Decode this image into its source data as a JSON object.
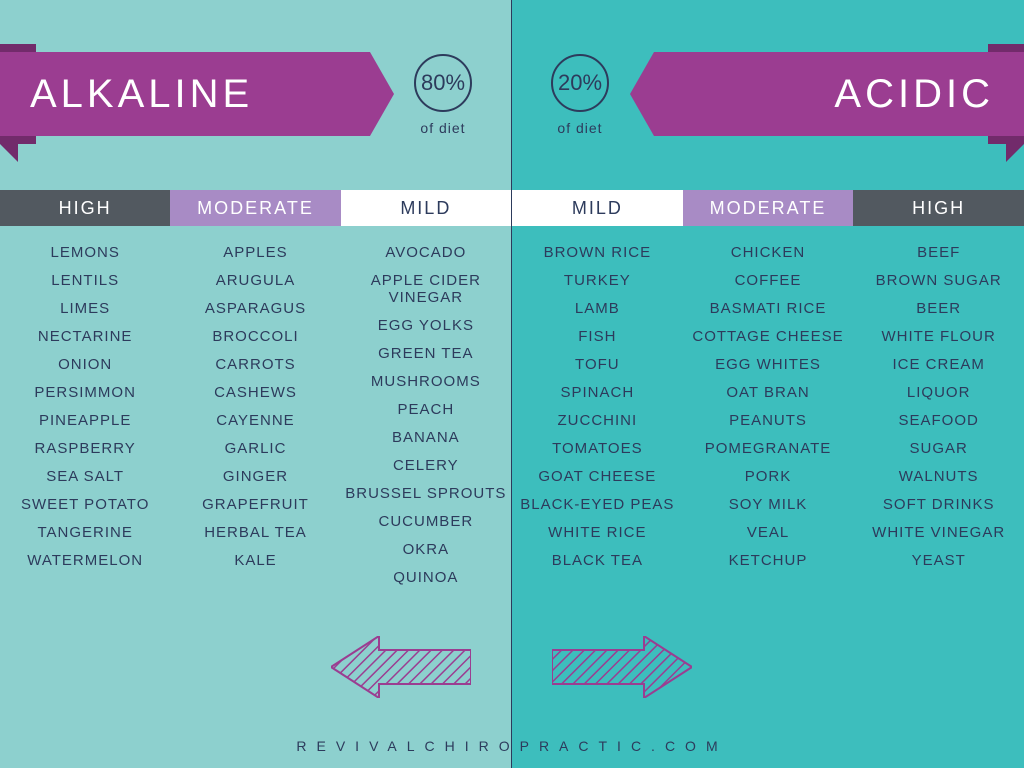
{
  "colors": {
    "left_bg": "#8DD0CE",
    "right_bg": "#3DBEBD",
    "banner": "#9B3D91",
    "banner_shadow": "#722B6B",
    "text_dark": "#2D3B5C",
    "cat_high": "#525960",
    "cat_moderate": "#A88BC5",
    "cat_mild_bg": "#FFFFFF"
  },
  "left": {
    "title": "ALKALINE",
    "pct": "80%",
    "pct_sub": "of diet",
    "cats": {
      "high": "HIGH",
      "moderate": "MODERATE",
      "mild": "MILD"
    },
    "high": [
      "LEMONS",
      "LENTILS",
      "LIMES",
      "NECTARINE",
      "ONION",
      "PERSIMMON",
      "PINEAPPLE",
      "RASPBERRY",
      "SEA SALT",
      "SWEET POTATO",
      "TANGERINE",
      "WATERMELON"
    ],
    "moderate": [
      "APPLES",
      "ARUGULA",
      "ASPARAGUS",
      "BROCCOLI",
      "CARROTS",
      "CASHEWS",
      "CAYENNE",
      "GARLIC",
      "GINGER",
      "GRAPEFRUIT",
      "HERBAL TEA",
      "KALE"
    ],
    "mild": [
      "AVOCADO",
      "APPLE CIDER VINEGAR",
      "EGG YOLKS",
      "GREEN TEA",
      "MUSHROOMS",
      "PEACH",
      "BANANA",
      "CELERY",
      "BRUSSEL SPROUTS",
      "CUCUMBER",
      "OKRA",
      "QUINOA"
    ]
  },
  "right": {
    "title": "ACIDIC",
    "pct": "20%",
    "pct_sub": "of diet",
    "cats": {
      "high": "HIGH",
      "moderate": "MODERATE",
      "mild": "MILD"
    },
    "mild": [
      "BROWN RICE",
      "TURKEY",
      "LAMB",
      "FISH",
      "TOFU",
      "SPINACH",
      "ZUCCHINI",
      "TOMATOES",
      "GOAT CHEESE",
      "BLACK-EYED PEAS",
      "WHITE RICE",
      "BLACK TEA"
    ],
    "moderate": [
      "CHICKEN",
      "COFFEE",
      "BASMATI RICE",
      "COTTAGE CHEESE",
      "EGG WHITES",
      "OAT BRAN",
      "PEANUTS",
      "POMEGRANATE",
      "PORK",
      "SOY MILK",
      "VEAL",
      "KETCHUP"
    ],
    "high": [
      "BEEF",
      "BROWN SUGAR",
      "BEER",
      "WHITE FLOUR",
      "ICE CREAM",
      "LIQUOR",
      "SEAFOOD",
      "SUGAR",
      "WALNUTS",
      "SOFT DRINKS",
      "WHITE VINEGAR",
      "YEAST"
    ]
  },
  "footer": "REVIVALCHIROPRACTIC.COM",
  "arrow": {
    "stroke": "#9B3D91",
    "fill_pattern": "diagonal-hatch"
  }
}
